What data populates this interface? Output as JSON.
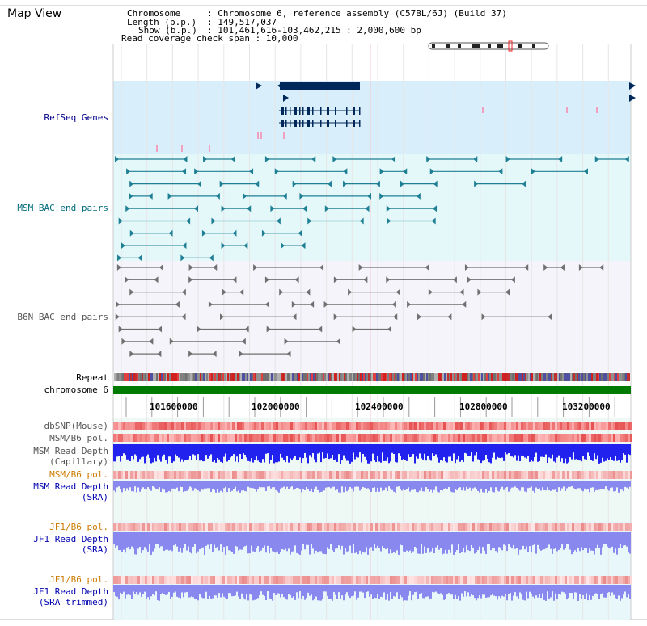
{
  "title": "Map View",
  "info": {
    "chromosome_key": "Chromosome",
    "chromosome_val": ": Chromosome 6, reference assembly (C57BL/6J) (Build 37)",
    "length_key": "Length (b.p.)",
    "length_val": ": 149,517,037",
    "show_key": "Show (b.p.)",
    "show_val": ": 101,461,616-103,462,215 : 2,000,600 bp",
    "coverage": "Read coverage check span : 10,000"
  },
  "labels": {
    "refseq": "RefSeq Genes",
    "msm_bac": "MSM BAC end pairs",
    "b6n_bac": "B6N BAC end pairs",
    "repeat": "Repeat",
    "chromosome": "chromosome 6",
    "dbsnp": "dbSNP(Mouse)",
    "msm_b6_pol_1": "MSM/B6 pol.",
    "msm_read_depth_cap_1": "MSM Read Depth",
    "msm_read_depth_cap_2": "(Capillary)",
    "msm_b6_pol_2": "MSM/B6 pol.",
    "msm_read_depth_sra_1": "MSM Read Depth",
    "msm_read_depth_sra_2": "(SRA)",
    "jf1_b6_pol_1": "JF1/B6 pol.",
    "jf1_read_depth_sra_1": "JF1 Read Depth",
    "jf1_read_depth_sra_2": "(SRA)",
    "jf1_b6_pol_2": "JF1/B6 pol.",
    "jf1_read_depth_trim_1": "JF1 Read Depth",
    "jf1_read_depth_trim_2": "(SRA trimmed)"
  },
  "axis_ticks": [
    "101600000",
    "102000000",
    "102400000",
    "102800000",
    "103200000"
  ],
  "colors": {
    "refseq_bg": "#d8eefa",
    "msm_bg": "#e4f8fa",
    "b6n_bg": "#f4f4fa",
    "chrom_green": "#007a00",
    "gene_navy": "#00285a",
    "msm_teal": "#1f7f94",
    "b6n_grey": "#707070",
    "snp_red": "#ee3b3b",
    "depth_blue": "#2222ee",
    "depth_lilac": "#8888ee"
  }
}
